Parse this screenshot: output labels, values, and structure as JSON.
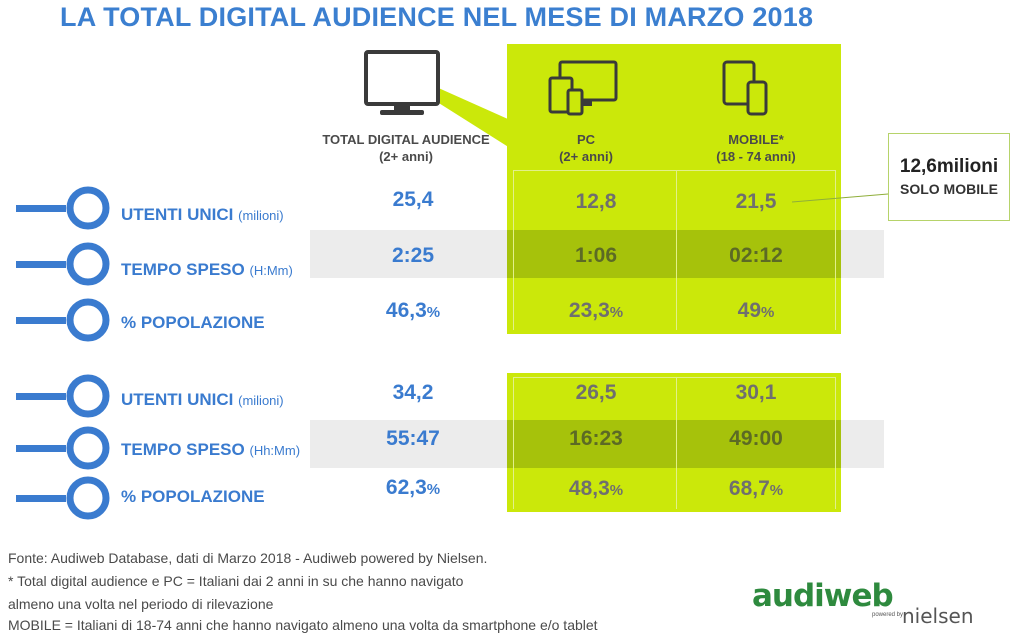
{
  "title": "LA TOTAL DIGITAL AUDIENCE NEL MESE DI MARZO 2018",
  "icons": {
    "total": "desktop-monitor-icon",
    "pc": "multi-device-icon",
    "mobile": "tablet-smartphone-icon",
    "row_marker": "pin-circle-icon"
  },
  "colors": {
    "accent_green": "#cbe80a",
    "dark_green": "#a6c20b",
    "blue_text": "#3a7bcf",
    "title_blue": "#3b7fd0"
  },
  "columns": [
    {
      "line1": "TOTAL DIGITAL AUDIENCE",
      "line2": "(2+ anni)"
    },
    {
      "line1": "PC",
      "line2": "(2+ anni)"
    },
    {
      "line1": "MOBILE*",
      "line2": "(18 - 74 anni)"
    }
  ],
  "callout": {
    "value": "12,6milioni",
    "label": "SOLO MOBILE"
  },
  "chart_data": {
    "type": "table",
    "title": "LA TOTAL DIGITAL AUDIENCE NEL MESE DI MARZO 2018",
    "columns": [
      "TOTAL DIGITAL AUDIENCE (2+ anni)",
      "PC (2+ anni)",
      "MOBILE* (18 - 74 anni)"
    ],
    "groups": [
      {
        "rows": [
          {
            "label": "UTENTI UNICI",
            "unit": "(milioni)",
            "values": [
              "25,4",
              "12,8",
              "21,5"
            ]
          },
          {
            "label": "TEMPO SPESO",
            "unit": "(H:Mm)",
            "values": [
              "2:25",
              "1:06",
              "02:12"
            ]
          },
          {
            "label": "% POPOLAZIONE",
            "unit": "",
            "values": [
              "46,3",
              "23,3",
              "49"
            ],
            "suffix": "%"
          }
        ]
      },
      {
        "rows": [
          {
            "label": "UTENTI UNICI",
            "unit": "(milioni)",
            "values": [
              "34,2",
              "26,5",
              "30,1"
            ]
          },
          {
            "label": "TEMPO SPESO",
            "unit": "(Hh:Mm)",
            "values": [
              "55:47",
              "16:23",
              "49:00"
            ]
          },
          {
            "label": "% POPOLAZIONE",
            "unit": "",
            "values": [
              "62,3",
              "48,3",
              "68,7"
            ],
            "suffix": "%"
          }
        ]
      }
    ]
  },
  "footer": {
    "line1": "Fonte: Audiweb Database, dati di Marzo 2018 - Audiweb powered by Nielsen.",
    "line2": "* Total digital audience e PC = Italiani dai 2 anni in su che hanno navigato",
    "line3": "almeno una volta nel periodo di rilevazione",
    "line4": "MOBILE = Italiani di 18-74 anni che hanno navigato almeno una volta da smartphone e/o tablet"
  },
  "logo": {
    "brand": "audiweb",
    "powered": "powered by",
    "partner": "nielsen"
  }
}
